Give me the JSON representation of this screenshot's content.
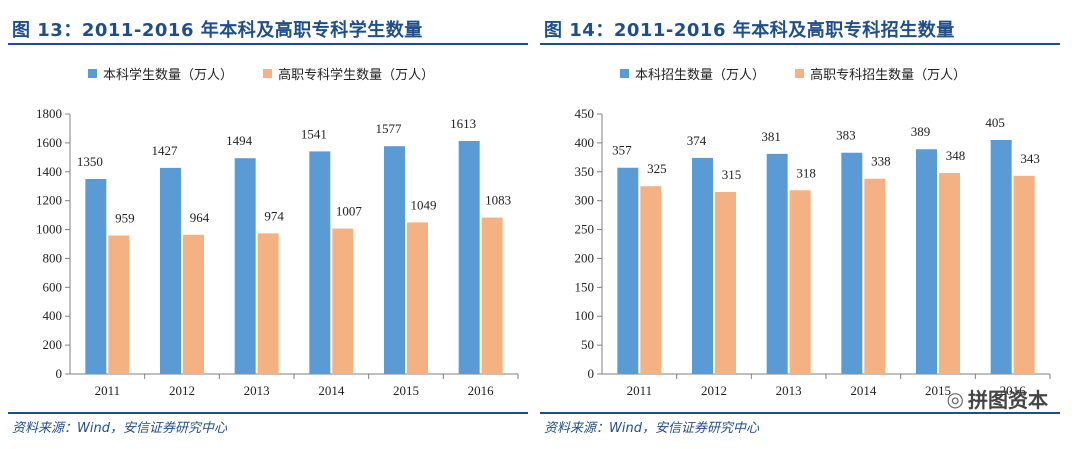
{
  "colors": {
    "accent": "#1f4e8c",
    "blue": "#5b9bd5",
    "orange": "#f4b183"
  },
  "panels": [
    {
      "title": "图 13：2011-2016 年本科及高职专科学生数量",
      "source": "资料来源：Wind，安信证券研究中心"
    },
    {
      "title": "图 14：2011-2016 年本科及高职专科招生数量",
      "source": "资料来源：Wind，安信证券研究中心"
    }
  ],
  "watermark": {
    "icon": "wechat-icon",
    "text": "拼图资本"
  },
  "chart_data": [
    {
      "type": "bar",
      "title": "图 13：2011-2016 年本科及高职专科学生数量",
      "categories": [
        "2011",
        "2012",
        "2013",
        "2014",
        "2015",
        "2016"
      ],
      "series": [
        {
          "name": "本科学生数量（万人）",
          "values": [
            1350,
            1427,
            1494,
            1541,
            1577,
            1613
          ],
          "color": "#5b9bd5"
        },
        {
          "name": "高职专科学生数量（万人）",
          "values": [
            959,
            964,
            974,
            1007,
            1049,
            1083
          ],
          "color": "#f4b183"
        }
      ],
      "ylim": [
        0,
        1800
      ],
      "yticks": [
        0,
        200,
        400,
        600,
        800,
        1000,
        1200,
        1400,
        1600,
        1800
      ],
      "legend": "top"
    },
    {
      "type": "bar",
      "title": "图 14：2011-2016 年本科及高职专科招生数量",
      "categories": [
        "2011",
        "2012",
        "2013",
        "2014",
        "2015",
        "2016"
      ],
      "series": [
        {
          "name": "本科招生数量（万人）",
          "values": [
            357,
            374,
            381,
            383,
            389,
            405
          ],
          "color": "#5b9bd5"
        },
        {
          "name": "高职专科招生数量（万人）",
          "values": [
            325,
            315,
            318,
            338,
            348,
            343
          ],
          "color": "#f4b183"
        }
      ],
      "ylim": [
        0,
        450
      ],
      "yticks": [
        0,
        50,
        100,
        150,
        200,
        250,
        300,
        350,
        400,
        450
      ],
      "legend": "top"
    }
  ]
}
